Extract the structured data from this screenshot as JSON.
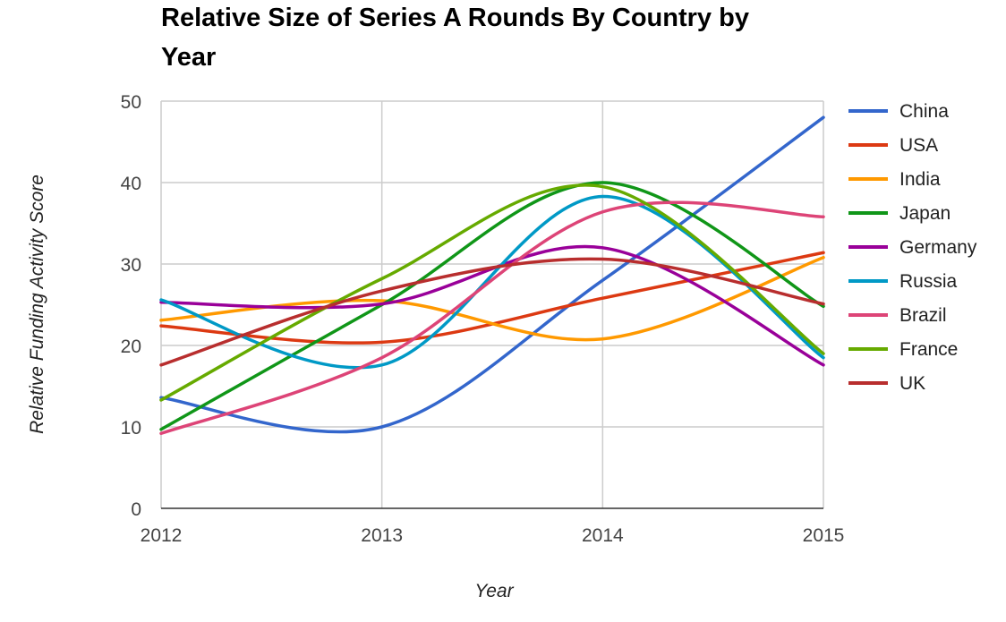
{
  "chart_data": {
    "type": "line",
    "title_line1": "Relative Size of Series A Rounds By Country by",
    "title_line2": "Year",
    "xlabel": "Year",
    "ylabel": "Relative Funding Activity Score",
    "x": [
      "2012",
      "2013",
      "2014",
      "2015"
    ],
    "ylim": [
      0,
      50
    ],
    "yticks": [
      "0",
      "10",
      "20",
      "30",
      "40",
      "50"
    ],
    "grid": true,
    "legend_position": "right",
    "curve": "smooth",
    "series": [
      {
        "name": "China",
        "color": "#3366cc",
        "values": [
          13.6,
          10.0,
          28.0,
          48.0
        ]
      },
      {
        "name": "USA",
        "color": "#dc3912",
        "values": [
          22.4,
          20.4,
          25.8,
          31.4
        ]
      },
      {
        "name": "India",
        "color": "#ff9900",
        "values": [
          23.1,
          25.5,
          20.8,
          30.8
        ]
      },
      {
        "name": "Japan",
        "color": "#109618",
        "values": [
          9.7,
          25.0,
          40.0,
          24.8
        ]
      },
      {
        "name": "Germany",
        "color": "#990099",
        "values": [
          25.3,
          25.1,
          32.0,
          17.6
        ]
      },
      {
        "name": "Russia",
        "color": "#0099c6",
        "values": [
          25.6,
          17.6,
          38.3,
          18.5
        ]
      },
      {
        "name": "Brazil",
        "color": "#dd4477",
        "values": [
          9.2,
          18.5,
          36.4,
          35.8
        ]
      },
      {
        "name": "France",
        "color": "#66aa00",
        "values": [
          13.3,
          28.2,
          39.5,
          19.0
        ]
      },
      {
        "name": "UK",
        "color": "#b82e2e",
        "values": [
          17.6,
          26.7,
          30.6,
          25.1
        ]
      }
    ]
  }
}
